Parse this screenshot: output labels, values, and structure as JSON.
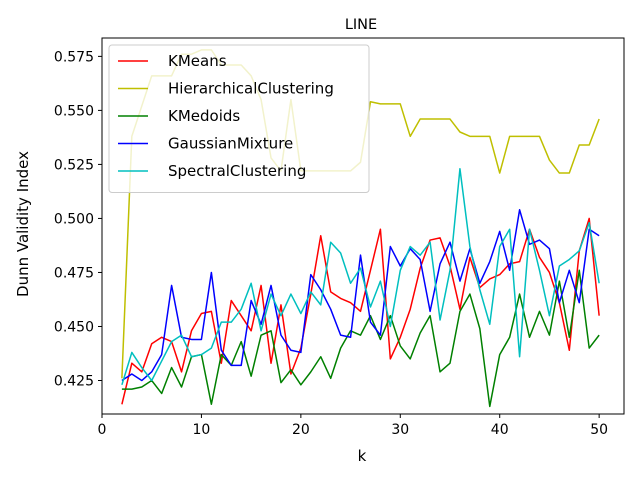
{
  "chart_data": {
    "type": "line",
    "title": "LINE",
    "xlabel": "k",
    "ylabel": "Dunn Validity Index",
    "xlim": [
      0,
      52.5
    ],
    "ylim": [
      0.4095,
      0.5835
    ],
    "xticks": [
      0,
      10,
      20,
      30,
      40,
      50
    ],
    "yticks": [
      0.425,
      0.45,
      0.475,
      0.5,
      0.525,
      0.55,
      0.575
    ],
    "ytick_labels": [
      "0.425",
      "0.450",
      "0.475",
      "0.500",
      "0.525",
      "0.550",
      "0.575"
    ],
    "grid": false,
    "legend": "upper left",
    "x": [
      2,
      3,
      4,
      5,
      6,
      7,
      8,
      9,
      10,
      11,
      12,
      13,
      14,
      15,
      16,
      17,
      18,
      19,
      20,
      21,
      22,
      23,
      24,
      25,
      26,
      27,
      28,
      29,
      30,
      31,
      32,
      33,
      34,
      35,
      36,
      37,
      38,
      39,
      40,
      41,
      42,
      43,
      44,
      45,
      46,
      47,
      48,
      49,
      50
    ],
    "series": [
      {
        "name": "KMeans",
        "color": "#ff0000",
        "values": [
          0.414,
          0.433,
          0.429,
          0.442,
          0.445,
          0.443,
          0.429,
          0.448,
          0.456,
          0.457,
          0.433,
          0.462,
          0.455,
          0.448,
          0.469,
          0.433,
          0.46,
          0.428,
          0.44,
          0.465,
          0.492,
          0.466,
          0.463,
          0.461,
          0.457,
          0.476,
          0.495,
          0.435,
          0.445,
          0.458,
          0.477,
          0.49,
          0.491,
          0.478,
          0.458,
          0.482,
          0.468,
          0.472,
          0.474,
          0.479,
          0.48,
          0.495,
          0.482,
          0.475,
          0.461,
          0.439,
          0.485,
          0.5,
          0.455
        ]
      },
      {
        "name": "HierarchicalClustering",
        "color": "#bfbf00",
        "values": [
          0.426,
          0.538,
          0.552,
          0.566,
          0.566,
          0.566,
          0.576,
          0.576,
          0.578,
          0.578,
          0.571,
          0.571,
          0.571,
          0.566,
          0.555,
          0.528,
          0.522,
          0.555,
          0.522,
          0.522,
          0.522,
          0.522,
          0.522,
          0.522,
          0.526,
          0.554,
          0.553,
          0.553,
          0.553,
          0.538,
          0.546,
          0.546,
          0.546,
          0.546,
          0.54,
          0.538,
          0.538,
          0.538,
          0.521,
          0.538,
          0.538,
          0.538,
          0.538,
          0.527,
          0.521,
          0.521,
          0.534,
          0.534,
          0.546
        ]
      },
      {
        "name": "KMedoids",
        "color": "#008000",
        "values": [
          0.421,
          0.421,
          0.422,
          0.425,
          0.419,
          0.431,
          0.422,
          0.436,
          0.437,
          0.414,
          0.437,
          0.432,
          0.443,
          0.427,
          0.446,
          0.448,
          0.424,
          0.43,
          0.423,
          0.429,
          0.436,
          0.426,
          0.44,
          0.448,
          0.446,
          0.455,
          0.444,
          0.455,
          0.441,
          0.435,
          0.447,
          0.455,
          0.429,
          0.433,
          0.457,
          0.465,
          0.449,
          0.413,
          0.437,
          0.445,
          0.465,
          0.445,
          0.457,
          0.446,
          0.471,
          0.445,
          0.476,
          0.44,
          0.446
        ]
      },
      {
        "name": "GaussianMixture",
        "color": "#0000ff",
        "values": [
          0.425,
          0.428,
          0.425,
          0.429,
          0.437,
          0.469,
          0.445,
          0.444,
          0.444,
          0.475,
          0.439,
          0.432,
          0.432,
          0.462,
          0.451,
          0.469,
          0.446,
          0.439,
          0.438,
          0.474,
          0.467,
          0.458,
          0.446,
          0.445,
          0.483,
          0.452,
          0.446,
          0.487,
          0.478,
          0.486,
          0.481,
          0.457,
          0.479,
          0.489,
          0.471,
          0.486,
          0.47,
          0.48,
          0.494,
          0.476,
          0.504,
          0.488,
          0.49,
          0.486,
          0.461,
          0.476,
          0.461,
          0.495,
          0.492
        ]
      },
      {
        "name": "SpectralClustering",
        "color": "#00bfbf",
        "values": [
          0.423,
          0.438,
          0.431,
          0.425,
          0.434,
          0.443,
          0.446,
          0.436,
          0.437,
          0.44,
          0.452,
          0.452,
          0.458,
          0.47,
          0.448,
          0.465,
          0.455,
          0.465,
          0.456,
          0.466,
          0.46,
          0.489,
          0.484,
          0.47,
          0.477,
          0.459,
          0.471,
          0.45,
          0.476,
          0.487,
          0.483,
          0.489,
          0.453,
          0.476,
          0.523,
          0.487,
          0.467,
          0.451,
          0.487,
          0.495,
          0.436,
          0.495,
          0.476,
          0.455,
          0.478,
          0.481,
          0.485,
          0.498,
          0.47
        ]
      }
    ]
  }
}
